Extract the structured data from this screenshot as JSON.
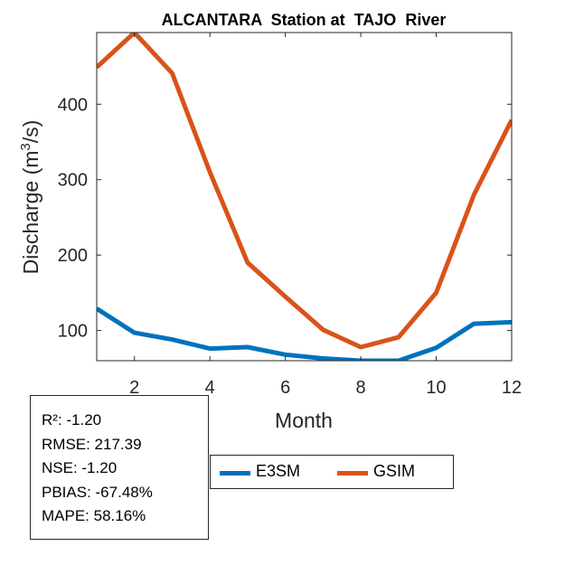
{
  "chart_data": {
    "type": "line",
    "title": "ALCANTARA  Station at  TAJO  River",
    "xlabel": "Month",
    "ylabel": "Discharge (m3/s)",
    "ylabel_parts": {
      "before": "Discharge (m",
      "sup": "3",
      "after": "/s)"
    },
    "xlim": [
      1,
      12
    ],
    "ylim": [
      60,
      495
    ],
    "xticks": [
      2,
      4,
      6,
      8,
      10,
      12
    ],
    "yticks": [
      100,
      200,
      300,
      400
    ],
    "grid": false,
    "legend_position": "bottom",
    "x": [
      1,
      2,
      3,
      4,
      5,
      6,
      7,
      8,
      9,
      10,
      11,
      12
    ],
    "series": [
      {
        "name": "E3SM",
        "color": "#0072BD",
        "values": [
          129,
          97,
          88,
          76,
          78,
          68,
          63,
          60,
          60,
          77,
          109,
          111
        ]
      },
      {
        "name": "GSIM",
        "color": "#D95319",
        "values": [
          449,
          495,
          441,
          310,
          190,
          145,
          101,
          78,
          91,
          150,
          280,
          379
        ]
      }
    ]
  },
  "stats": [
    "R²: -1.20",
    "RMSE: 217.39",
    "NSE: -1.20",
    "PBIAS: -67.48%",
    "MAPE: 58.16%"
  ]
}
